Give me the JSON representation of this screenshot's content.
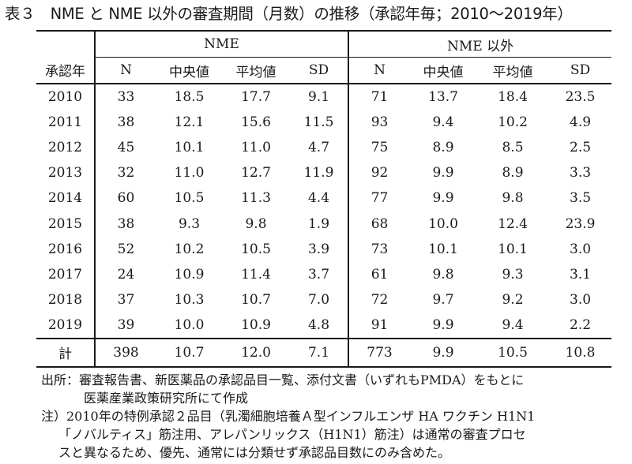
{
  "title": "表３　NME と NME 以外の審査期間（月数）の推移（承認年毎；2010〜2019年）",
  "table": {
    "group_nme": "NME",
    "group_non_nme": "NME 以外",
    "row_header": "承認年",
    "columns": [
      "N",
      "中央値",
      "平均値",
      "SD",
      "N",
      "中央値",
      "平均値",
      "SD"
    ],
    "rows": [
      {
        "year": "2010",
        "cells": [
          "33",
          "18.5",
          "17.7",
          "9.1",
          "71",
          "13.7",
          "18.4",
          "23.5"
        ]
      },
      {
        "year": "2011",
        "cells": [
          "38",
          "12.1",
          "15.6",
          "11.5",
          "93",
          "9.4",
          "10.2",
          "4.9"
        ]
      },
      {
        "year": "2012",
        "cells": [
          "45",
          "10.1",
          "11.0",
          "4.7",
          "75",
          "8.9",
          "8.5",
          "2.5"
        ]
      },
      {
        "year": "2013",
        "cells": [
          "32",
          "11.0",
          "12.7",
          "11.9",
          "92",
          "9.9",
          "8.9",
          "3.3"
        ]
      },
      {
        "year": "2014",
        "cells": [
          "60",
          "10.5",
          "11.3",
          "4.4",
          "77",
          "9.9",
          "9.8",
          "3.5"
        ]
      },
      {
        "year": "2015",
        "cells": [
          "38",
          "9.3",
          "9.8",
          "1.9",
          "68",
          "10.0",
          "12.4",
          "23.9"
        ]
      },
      {
        "year": "2016",
        "cells": [
          "52",
          "10.2",
          "10.5",
          "3.9",
          "73",
          "10.1",
          "10.1",
          "3.0"
        ]
      },
      {
        "year": "2017",
        "cells": [
          "24",
          "10.9",
          "11.4",
          "3.7",
          "61",
          "9.8",
          "9.3",
          "3.1"
        ]
      },
      {
        "year": "2018",
        "cells": [
          "37",
          "10.3",
          "10.7",
          "7.0",
          "72",
          "9.7",
          "9.2",
          "3.0"
        ]
      },
      {
        "year": "2019",
        "cells": [
          "39",
          "10.0",
          "10.9",
          "4.8",
          "91",
          "9.9",
          "9.4",
          "2.2"
        ]
      }
    ],
    "total": {
      "year": "計",
      "cells": [
        "398",
        "10.7",
        "12.0",
        "7.1",
        "773",
        "9.9",
        "10.5",
        "10.8"
      ]
    }
  },
  "notes": {
    "source_line1": "出所：審査報告書、新医薬品の承認品目一覧、添付文書（いずれもPMDA）をもとに",
    "source_line2": "医薬産業政策研究所にて作成",
    "note_line1": "注）2010年の特例承認２品目（乳濁細胞培養Ａ型インフルエンザ HA ワクチン H1N1",
    "note_line2": "「ノバルティス」筋注用、アレパンリックス（H1N1）筋注）は通常の審査プロセ",
    "note_line3": "スと異なるため、優先、通常には分類せず承認品目数にのみ含めた。"
  }
}
